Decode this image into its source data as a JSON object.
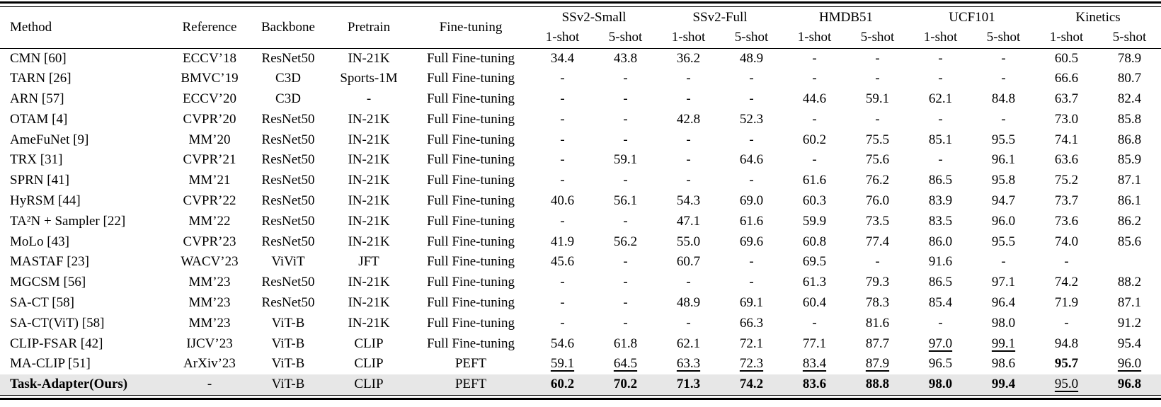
{
  "table": {
    "highlight_color": "#e7e7e7",
    "col_headers": [
      "Method",
      "Reference",
      "Backbone",
      "Pretrain",
      "Fine-tuning"
    ],
    "groups": [
      {
        "label": "SSv2-Small",
        "sub": [
          "1-shot",
          "5-shot"
        ]
      },
      {
        "label": "SSv2-Full",
        "sub": [
          "1-shot",
          "5-shot"
        ]
      },
      {
        "label": "HMDB51",
        "sub": [
          "1-shot",
          "5-shot"
        ]
      },
      {
        "label": "UCF101",
        "sub": [
          "1-shot",
          "5-shot"
        ]
      },
      {
        "label": "Kinetics",
        "sub": [
          "1-shot",
          "5-shot"
        ]
      }
    ],
    "rows": [
      {
        "method": "CMN [60]",
        "reference": "ECCV’18",
        "backbone": "ResNet50",
        "pretrain": "IN-21K",
        "finetuning": "Full Fine-tuning",
        "scores": [
          "34.4",
          "43.8",
          "36.2",
          "48.9",
          "-",
          "-",
          "-",
          "-",
          "60.5",
          "78.9"
        ]
      },
      {
        "method": "TARN [26]",
        "reference": "BMVC’19",
        "backbone": "C3D",
        "pretrain": "Sports-1M",
        "finetuning": "Full Fine-tuning",
        "scores": [
          "-",
          "-",
          "-",
          "-",
          "-",
          "-",
          "-",
          "-",
          "66.6",
          "80.7"
        ]
      },
      {
        "method": "ARN [57]",
        "reference": "ECCV’20",
        "backbone": "C3D",
        "pretrain": "-",
        "finetuning": "Full Fine-tuning",
        "scores": [
          "-",
          "-",
          "-",
          "-",
          "44.6",
          "59.1",
          "62.1",
          "84.8",
          "63.7",
          "82.4"
        ]
      },
      {
        "method": "OTAM [4]",
        "reference": "CVPR’20",
        "backbone": "ResNet50",
        "pretrain": "IN-21K",
        "finetuning": "Full Fine-tuning",
        "scores": [
          "-",
          "-",
          "42.8",
          "52.3",
          "-",
          "-",
          "-",
          "-",
          "73.0",
          "85.8"
        ]
      },
      {
        "method": "AmeFuNet [9]",
        "reference": "MM’20",
        "backbone": "ResNet50",
        "pretrain": "IN-21K",
        "finetuning": "Full Fine-tuning",
        "scores": [
          "-",
          "-",
          "-",
          "-",
          "60.2",
          "75.5",
          "85.1",
          "95.5",
          "74.1",
          "86.8"
        ]
      },
      {
        "method": "TRX [31]",
        "reference": "CVPR’21",
        "backbone": "ResNet50",
        "pretrain": "IN-21K",
        "finetuning": "Full Fine-tuning",
        "scores": [
          "-",
          "59.1",
          "-",
          "64.6",
          "-",
          "75.6",
          "-",
          "96.1",
          "63.6",
          "85.9"
        ]
      },
      {
        "method": "SPRN [41]",
        "reference": "MM’21",
        "backbone": "ResNet50",
        "pretrain": "IN-21K",
        "finetuning": "Full Fine-tuning",
        "scores": [
          "-",
          "-",
          "-",
          "-",
          "61.6",
          "76.2",
          "86.5",
          "95.8",
          "75.2",
          "87.1"
        ]
      },
      {
        "method": "HyRSM [44]",
        "reference": "CVPR’22",
        "backbone": "ResNet50",
        "pretrain": "IN-21K",
        "finetuning": "Full Fine-tuning",
        "scores": [
          "40.6",
          "56.1",
          "54.3",
          "69.0",
          "60.3",
          "76.0",
          "83.9",
          "94.7",
          "73.7",
          "86.1"
        ]
      },
      {
        "method": "TA²N + Sampler [22]",
        "reference": "MM’22",
        "backbone": "ResNet50",
        "pretrain": "IN-21K",
        "finetuning": "Full Fine-tuning",
        "scores": [
          "-",
          "-",
          "47.1",
          "61.6",
          "59.9",
          "73.5",
          "83.5",
          "96.0",
          "73.6",
          "86.2"
        ]
      },
      {
        "method": "MoLo [43]",
        "reference": "CVPR’23",
        "backbone": "ResNet50",
        "pretrain": "IN-21K",
        "finetuning": "Full Fine-tuning",
        "scores": [
          "41.9",
          "56.2",
          "55.0",
          "69.6",
          "60.8",
          "77.4",
          "86.0",
          "95.5",
          "74.0",
          "85.6"
        ]
      },
      {
        "method": "MASTAF [23]",
        "reference": "WACV’23",
        "backbone": "ViViT",
        "pretrain": "JFT",
        "finetuning": "Full Fine-tuning",
        "scores": [
          "45.6",
          "-",
          "60.7",
          "-",
          "69.5",
          "-",
          "91.6",
          "-",
          "-",
          ""
        ]
      },
      {
        "method": "MGCSM [56]",
        "reference": "MM’23",
        "backbone": "ResNet50",
        "pretrain": "IN-21K",
        "finetuning": "Full Fine-tuning",
        "scores": [
          "-",
          "-",
          "-",
          "-",
          "61.3",
          "79.3",
          "86.5",
          "97.1",
          "74.2",
          "88.2"
        ]
      },
      {
        "method": "SA-CT [58]",
        "reference": "MM’23",
        "backbone": "ResNet50",
        "pretrain": "IN-21K",
        "finetuning": "Full Fine-tuning",
        "scores": [
          "-",
          "-",
          "48.9",
          "69.1",
          "60.4",
          "78.3",
          "85.4",
          "96.4",
          "71.9",
          "87.1"
        ]
      },
      {
        "method": "SA-CT(ViT) [58]",
        "reference": "MM’23",
        "backbone": "ViT-B",
        "pretrain": "IN-21K",
        "finetuning": "Full Fine-tuning",
        "scores": [
          "-",
          "-",
          "-",
          "66.3",
          "-",
          "81.6",
          "-",
          "98.0",
          "-",
          "91.2"
        ]
      },
      {
        "method": "CLIP-FSAR [42]",
        "reference": "IJCV’23",
        "backbone": "ViT-B",
        "pretrain": "CLIP",
        "finetuning": "Full Fine-tuning",
        "scores": [
          "54.6",
          "61.8",
          "62.1",
          "72.1",
          "77.1",
          "87.7",
          "97.0",
          "99.1",
          "94.8",
          "95.4"
        ],
        "styles": [
          "",
          "",
          "",
          "",
          "",
          "",
          "u",
          "u",
          "",
          ""
        ]
      },
      {
        "method": "MA-CLIP [51]",
        "reference": "ArXiv’23",
        "backbone": "ViT-B",
        "pretrain": "CLIP",
        "finetuning": "PEFT",
        "scores": [
          "59.1",
          "64.5",
          "63.3",
          "72.3",
          "83.4",
          "87.9",
          "96.5",
          "98.6",
          "95.7",
          "96.0"
        ],
        "styles": [
          "u",
          "u",
          "u",
          "u",
          "u",
          "u",
          "",
          "",
          "b",
          "u"
        ]
      },
      {
        "method": "Task-Adapter(Ours)",
        "reference": "-",
        "backbone": "ViT-B",
        "pretrain": "CLIP",
        "finetuning": "PEFT",
        "scores": [
          "60.2",
          "70.2",
          "71.3",
          "74.2",
          "83.6",
          "88.8",
          "98.0",
          "99.4",
          "95.0",
          "96.8"
        ],
        "styles": [
          "b",
          "b",
          "b",
          "b",
          "b",
          "b",
          "b",
          "b",
          "u",
          "b"
        ],
        "highlight": true,
        "bold_method": true
      }
    ]
  }
}
